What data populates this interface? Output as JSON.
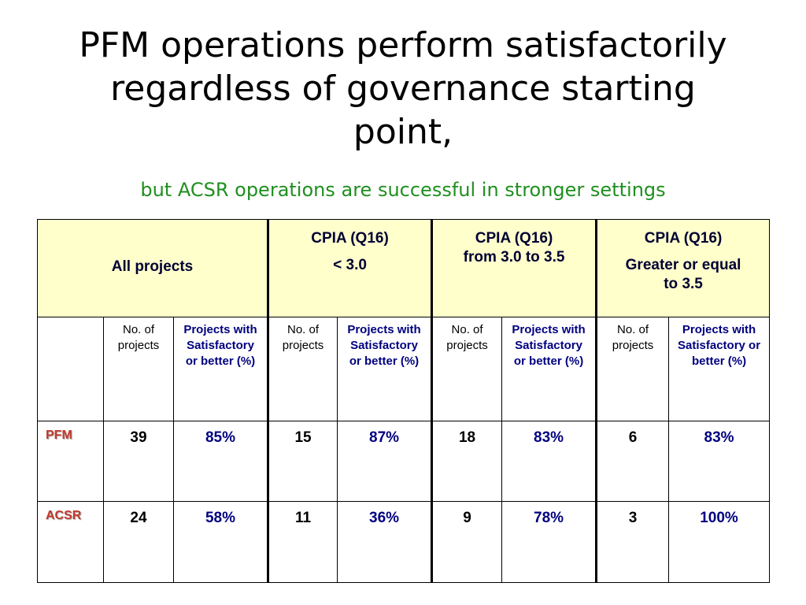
{
  "title": {
    "line1": "PFM operations perform satisfactorily",
    "line2": "regardless of governance starting",
    "line3": "point,"
  },
  "subtitle": "but ACSR operations are successful in stronger settings",
  "table": {
    "header": {
      "all_projects": "All projects",
      "group1": {
        "line1": "CPIA (Q16)",
        "line2": "< 3.0"
      },
      "group2": {
        "line1": "CPIA (Q16)",
        "line2": "from 3.0 to 3.5"
      },
      "group3": {
        "line1": "CPIA (Q16)",
        "line2": "Greater or equal to 3.5"
      }
    },
    "subheader": {
      "no_of_projects": "No. of projects",
      "pct_label_1": "Projects with Satisfactory or better (%)",
      "pct_label_2": "Projects with Satisfactory or better (%)",
      "pct_label_3": "Projects with Satisfactory or better (%)",
      "pct_label_4": "Projects with Satisfactory or better (%)"
    },
    "rows": [
      {
        "label": "PFM",
        "values": [
          "39",
          "85%",
          "15",
          "87%",
          "18",
          "83%",
          "6",
          "83%"
        ]
      },
      {
        "label": "ACSR",
        "values": [
          "24",
          "58%",
          "11",
          "36%",
          "9",
          "78%",
          "3",
          "100%"
        ]
      }
    ]
  }
}
